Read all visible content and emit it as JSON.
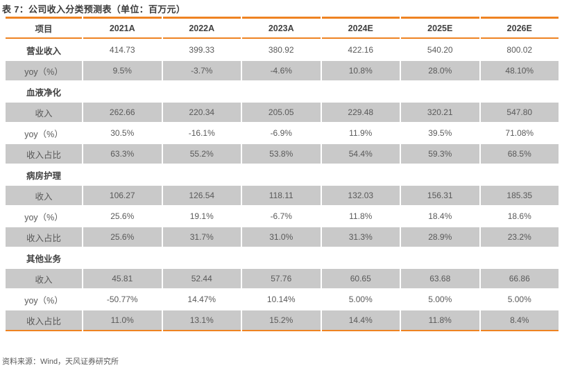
{
  "page": {
    "title": "表 7：公司收入分类预测表（单位：百万元）",
    "source_note": "资料来源：Wind，天风证券研究所"
  },
  "colors": {
    "accent_orange": "#ee8322",
    "row_shade_gray": "#c9c9c9",
    "header_text": "#404040",
    "body_text": "#595959"
  },
  "chart_data": {
    "type": "table",
    "title": "表 7：公司收入分类预测表（单位：百万元）",
    "columns": [
      "项目",
      "2021A",
      "2022A",
      "2023A",
      "2024E",
      "2025E",
      "2026E"
    ],
    "rows": [
      {
        "label": "营业收入",
        "section": true,
        "shaded": false,
        "values": [
          "414.73",
          "399.33",
          "380.92",
          "422.16",
          "540.20",
          "800.02"
        ]
      },
      {
        "label": "yoy（%）",
        "section": false,
        "shaded": true,
        "values": [
          "9.5%",
          "-3.7%",
          "-4.6%",
          "10.8%",
          "28.0%",
          "48.10%"
        ]
      },
      {
        "label": "血液净化",
        "section": true,
        "shaded": false,
        "values": [
          "",
          "",
          "",
          "",
          "",
          ""
        ]
      },
      {
        "label": "收入",
        "section": false,
        "shaded": true,
        "values": [
          "262.66",
          "220.34",
          "205.05",
          "229.48",
          "320.21",
          "547.80"
        ]
      },
      {
        "label": "yoy（%）",
        "section": false,
        "shaded": false,
        "values": [
          "30.5%",
          "-16.1%",
          "-6.9%",
          "11.9%",
          "39.5%",
          "71.08%"
        ]
      },
      {
        "label": "收入占比",
        "section": false,
        "shaded": true,
        "values": [
          "63.3%",
          "55.2%",
          "53.8%",
          "54.4%",
          "59.3%",
          "68.5%"
        ]
      },
      {
        "label": "病房护理",
        "section": true,
        "shaded": false,
        "values": [
          "",
          "",
          "",
          "",
          "",
          ""
        ]
      },
      {
        "label": "收入",
        "section": false,
        "shaded": true,
        "values": [
          "106.27",
          "126.54",
          "118.11",
          "132.03",
          "156.31",
          "185.35"
        ]
      },
      {
        "label": "yoy（%）",
        "section": false,
        "shaded": false,
        "values": [
          "25.6%",
          "19.1%",
          "-6.7%",
          "11.8%",
          "18.4%",
          "18.6%"
        ]
      },
      {
        "label": "收入占比",
        "section": false,
        "shaded": true,
        "values": [
          "25.6%",
          "31.7%",
          "31.0%",
          "31.3%",
          "28.9%",
          "23.2%"
        ]
      },
      {
        "label": "其他业务",
        "section": true,
        "shaded": false,
        "values": [
          "",
          "",
          "",
          "",
          "",
          ""
        ]
      },
      {
        "label": "收入",
        "section": false,
        "shaded": true,
        "values": [
          "45.81",
          "52.44",
          "57.76",
          "60.65",
          "63.68",
          "66.86"
        ]
      },
      {
        "label": "yoy（%）",
        "section": false,
        "shaded": false,
        "values": [
          "-50.77%",
          "14.47%",
          "10.14%",
          "5.00%",
          "5.00%",
          "5.00%"
        ]
      },
      {
        "label": "收入占比",
        "section": false,
        "shaded": true,
        "values": [
          "11.0%",
          "13.1%",
          "15.2%",
          "14.4%",
          "11.8%",
          "8.4%"
        ]
      }
    ]
  }
}
